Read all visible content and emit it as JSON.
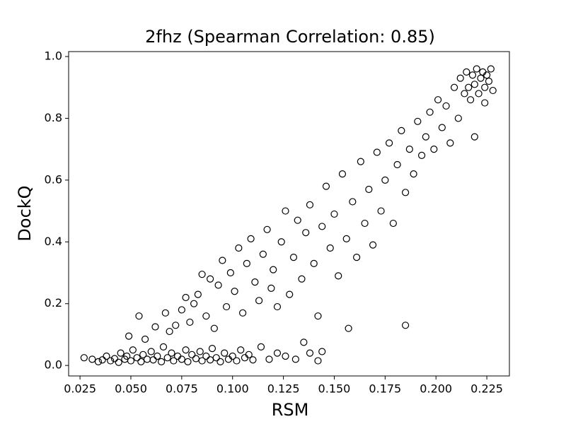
{
  "chart_data": {
    "type": "scatter",
    "title": "2fhz (Spearman Correlation: 0.85)",
    "x_label": "RSM",
    "y_label": "DockQ",
    "xlim": [
      0.0194,
      0.2361
    ],
    "ylim": [
      -0.034,
      1.016
    ],
    "xticks": [
      0.025,
      {
        "value": 0.05,
        "label": "0.050"
      },
      0.075,
      {
        "value": 0.1,
        "label": "0.100"
      },
      0.125,
      {
        "value": 0.15,
        "label": "0.150"
      },
      0.175,
      {
        "value": 0.2,
        "label": "0.200"
      },
      0.225
    ],
    "yticks": [
      {
        "value": 0,
        "label": "0.0"
      },
      0.2,
      0.4,
      0.6,
      0.8,
      {
        "value": 1,
        "label": "1.0"
      }
    ],
    "series": [
      {
        "color": "#000000",
        "x": [
          0.027,
          0.031,
          0.034,
          0.036,
          0.038,
          0.04,
          0.042,
          0.044,
          0.045,
          0.047,
          0.048,
          0.05,
          0.051,
          0.053,
          0.055,
          0.056,
          0.058,
          0.06,
          0.061,
          0.063,
          0.065,
          0.066,
          0.068,
          0.07,
          0.071,
          0.073,
          0.075,
          0.077,
          0.078,
          0.08,
          0.082,
          0.084,
          0.085,
          0.087,
          0.089,
          0.09,
          0.092,
          0.094,
          0.096,
          0.098,
          0.1,
          0.102,
          0.104,
          0.106,
          0.108,
          0.11,
          0.114,
          0.118,
          0.122,
          0.126,
          0.131,
          0.135,
          0.138,
          0.142,
          0.144,
          0.049,
          0.054,
          0.057,
          0.062,
          0.067,
          0.069,
          0.072,
          0.075,
          0.077,
          0.079,
          0.081,
          0.083,
          0.085,
          0.087,
          0.089,
          0.091,
          0.093,
          0.095,
          0.097,
          0.099,
          0.101,
          0.103,
          0.105,
          0.107,
          0.109,
          0.111,
          0.113,
          0.115,
          0.117,
          0.119,
          0.12,
          0.122,
          0.124,
          0.126,
          0.128,
          0.13,
          0.132,
          0.134,
          0.136,
          0.138,
          0.14,
          0.142,
          0.144,
          0.146,
          0.148,
          0.15,
          0.152,
          0.154,
          0.156,
          0.157,
          0.159,
          0.161,
          0.163,
          0.165,
          0.167,
          0.169,
          0.171,
          0.173,
          0.175,
          0.177,
          0.179,
          0.181,
          0.183,
          0.185,
          0.185,
          0.187,
          0.189,
          0.191,
          0.193,
          0.195,
          0.197,
          0.199,
          0.201,
          0.203,
          0.205,
          0.207,
          0.209,
          0.211,
          0.212,
          0.214,
          0.215,
          0.216,
          0.217,
          0.218,
          0.219,
          0.22,
          0.221,
          0.222,
          0.223,
          0.224,
          0.225,
          0.226,
          0.227,
          0.228,
          0.219,
          0.224
        ],
        "y": [
          0.025,
          0.02,
          0.012,
          0.018,
          0.03,
          0.015,
          0.022,
          0.01,
          0.04,
          0.02,
          0.03,
          0.015,
          0.05,
          0.025,
          0.012,
          0.035,
          0.02,
          0.045,
          0.018,
          0.03,
          0.012,
          0.06,
          0.025,
          0.04,
          0.015,
          0.03,
          0.02,
          0.05,
          0.012,
          0.035,
          0.022,
          0.045,
          0.015,
          0.03,
          0.018,
          0.055,
          0.025,
          0.012,
          0.04,
          0.02,
          0.03,
          0.015,
          0.05,
          0.025,
          0.035,
          0.018,
          0.06,
          0.02,
          0.04,
          0.03,
          0.02,
          0.075,
          0.04,
          0.015,
          0.045,
          0.095,
          0.16,
          0.085,
          0.125,
          0.17,
          0.11,
          0.13,
          0.18,
          0.22,
          0.14,
          0.2,
          0.23,
          0.295,
          0.16,
          0.28,
          0.12,
          0.26,
          0.34,
          0.19,
          0.3,
          0.24,
          0.38,
          0.17,
          0.33,
          0.41,
          0.27,
          0.21,
          0.36,
          0.44,
          0.25,
          0.31,
          0.19,
          0.4,
          0.5,
          0.23,
          0.35,
          0.47,
          0.28,
          0.43,
          0.52,
          0.33,
          0.16,
          0.45,
          0.58,
          0.38,
          0.49,
          0.29,
          0.62,
          0.41,
          0.12,
          0.53,
          0.35,
          0.66,
          0.46,
          0.57,
          0.39,
          0.69,
          0.5,
          0.6,
          0.72,
          0.46,
          0.65,
          0.76,
          0.13,
          0.56,
          0.7,
          0.62,
          0.79,
          0.68,
          0.74,
          0.82,
          0.7,
          0.86,
          0.77,
          0.84,
          0.72,
          0.9,
          0.8,
          0.93,
          0.88,
          0.95,
          0.9,
          0.86,
          0.94,
          0.91,
          0.96,
          0.88,
          0.93,
          0.95,
          0.9,
          0.94,
          0.92,
          0.96,
          0.89,
          0.74,
          0.85
        ]
      }
    ]
  }
}
